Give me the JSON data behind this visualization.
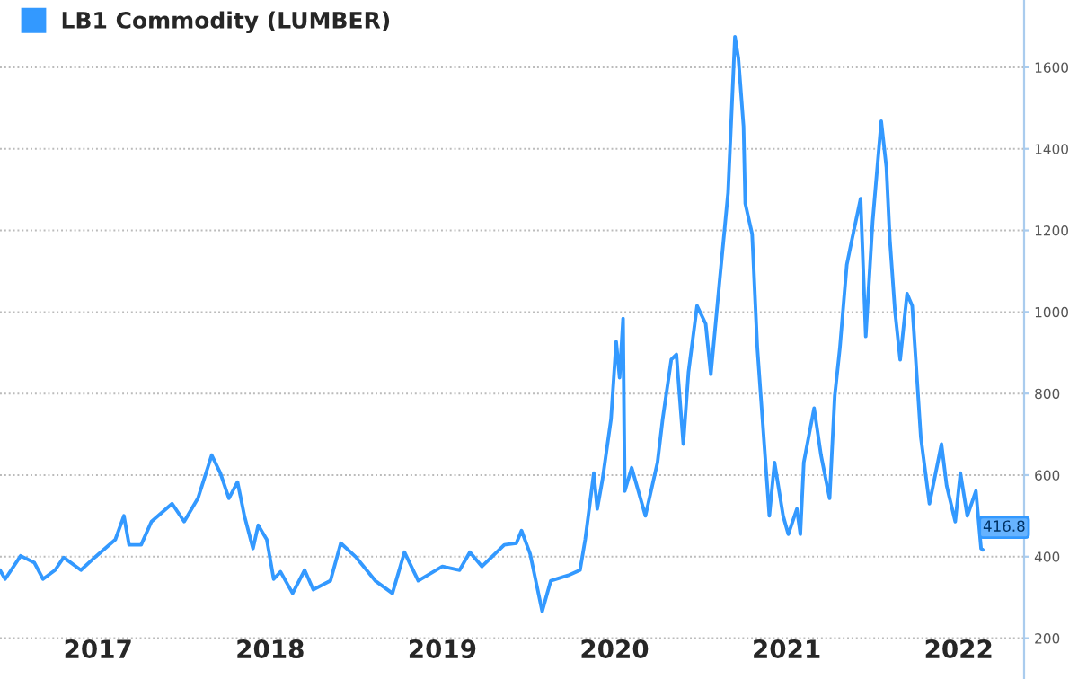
{
  "chart_data": {
    "type": "line",
    "x": [
      2016.93,
      2016.96,
      2017.05,
      2017.13,
      2017.18,
      2017.25,
      2017.3,
      2017.4,
      2017.48,
      2017.6,
      2017.65,
      2017.68,
      2017.75,
      2017.81,
      2017.93,
      2018.0,
      2018.08,
      2018.16,
      2018.21,
      2018.26,
      2018.31,
      2018.35,
      2018.4,
      2018.43,
      2018.48,
      2018.52,
      2018.56,
      2018.63,
      2018.7,
      2018.75,
      2018.85,
      2018.91,
      2019.0,
      2019.11,
      2019.21,
      2019.28,
      2019.36,
      2019.5,
      2019.6,
      2019.66,
      2019.73,
      2019.86,
      2019.93,
      2019.96,
      2020.01,
      2020.08,
      2020.13,
      2020.23,
      2020.3,
      2020.33,
      2020.38,
      2020.4,
      2020.43,
      2020.48,
      2020.51,
      2020.53,
      2020.55,
      2020.56,
      2020.6,
      2020.68,
      2020.75,
      2020.78,
      2020.83,
      2020.86,
      2020.9,
      2020.93,
      2020.98,
      2021.03,
      2021.06,
      2021.11,
      2021.16,
      2021.2,
      2021.22,
      2021.25,
      2021.26,
      2021.3,
      2021.33,
      2021.36,
      2021.4,
      2021.43,
      2021.48,
      2021.51,
      2021.56,
      2021.58,
      2021.6,
      2021.66,
      2021.7,
      2021.75,
      2021.78,
      2021.81,
      2021.85,
      2021.88,
      2021.93,
      2021.96,
      2022.0,
      2022.05,
      2022.08,
      2022.1,
      2022.13,
      2022.16,
      2022.2,
      2022.23,
      2022.28,
      2022.33,
      2022.4,
      2022.43,
      2022.48,
      2022.51,
      2022.55,
      2022.6,
      2022.63,
      2022.64
    ],
    "series": [
      {
        "name": "LB1 Commodity (LUMBER)",
        "color": "#3399ff",
        "values": [
          367,
          345,
          402,
          385,
          345,
          367,
          398,
          367,
          398,
          442,
          500,
          429,
          429,
          486,
          530,
          486,
          543,
          649,
          605,
          543,
          583,
          500,
          420,
          477,
          442,
          345,
          363,
          310,
          367,
          319,
          341,
          433,
          398,
          341,
          310,
          411,
          341,
          376,
          367,
          411,
          376,
          429,
          433,
          464,
          407,
          266,
          341,
          354,
          367,
          442,
          605,
          517,
          588,
          737,
          927,
          839,
          984,
          561,
          618,
          500,
          631,
          737,
          883,
          896,
          676,
          852,
          1015,
          971,
          847,
          1072,
          1292,
          1675,
          1622,
          1455,
          1266,
          1191,
          913,
          737,
          500,
          631,
          500,
          455,
          517,
          455,
          631,
          764,
          649,
          543,
          795,
          913,
          1116,
          1178,
          1278,
          940,
          1222,
          1468,
          1354,
          1178,
          1001,
          883,
          1045,
          1015,
          693,
          530,
          676,
          574,
          486,
          605,
          500,
          561,
          420,
          416.8
        ]
      }
    ],
    "annotations": [
      {
        "text": "416.8",
        "x": 2022.64,
        "y": 416.8
      }
    ],
    "xlim": [
      2016.93,
      2022.88
    ],
    "xticks": [
      {
        "value": 2017.5,
        "label": "2017"
      },
      {
        "value": 2018.5,
        "label": "2018"
      },
      {
        "value": 2019.5,
        "label": "2019"
      },
      {
        "value": 2020.5,
        "label": "2020"
      },
      {
        "value": 2021.5,
        "label": "2021"
      },
      {
        "value": 2022.5,
        "label": "2022"
      }
    ],
    "ylim": [
      100,
      1765
    ],
    "yticks": [
      200,
      400,
      600,
      800,
      1000,
      1200,
      1400,
      1600
    ],
    "grid": "y",
    "legend": "top left",
    "marker": "none",
    "line_style": "solid"
  }
}
